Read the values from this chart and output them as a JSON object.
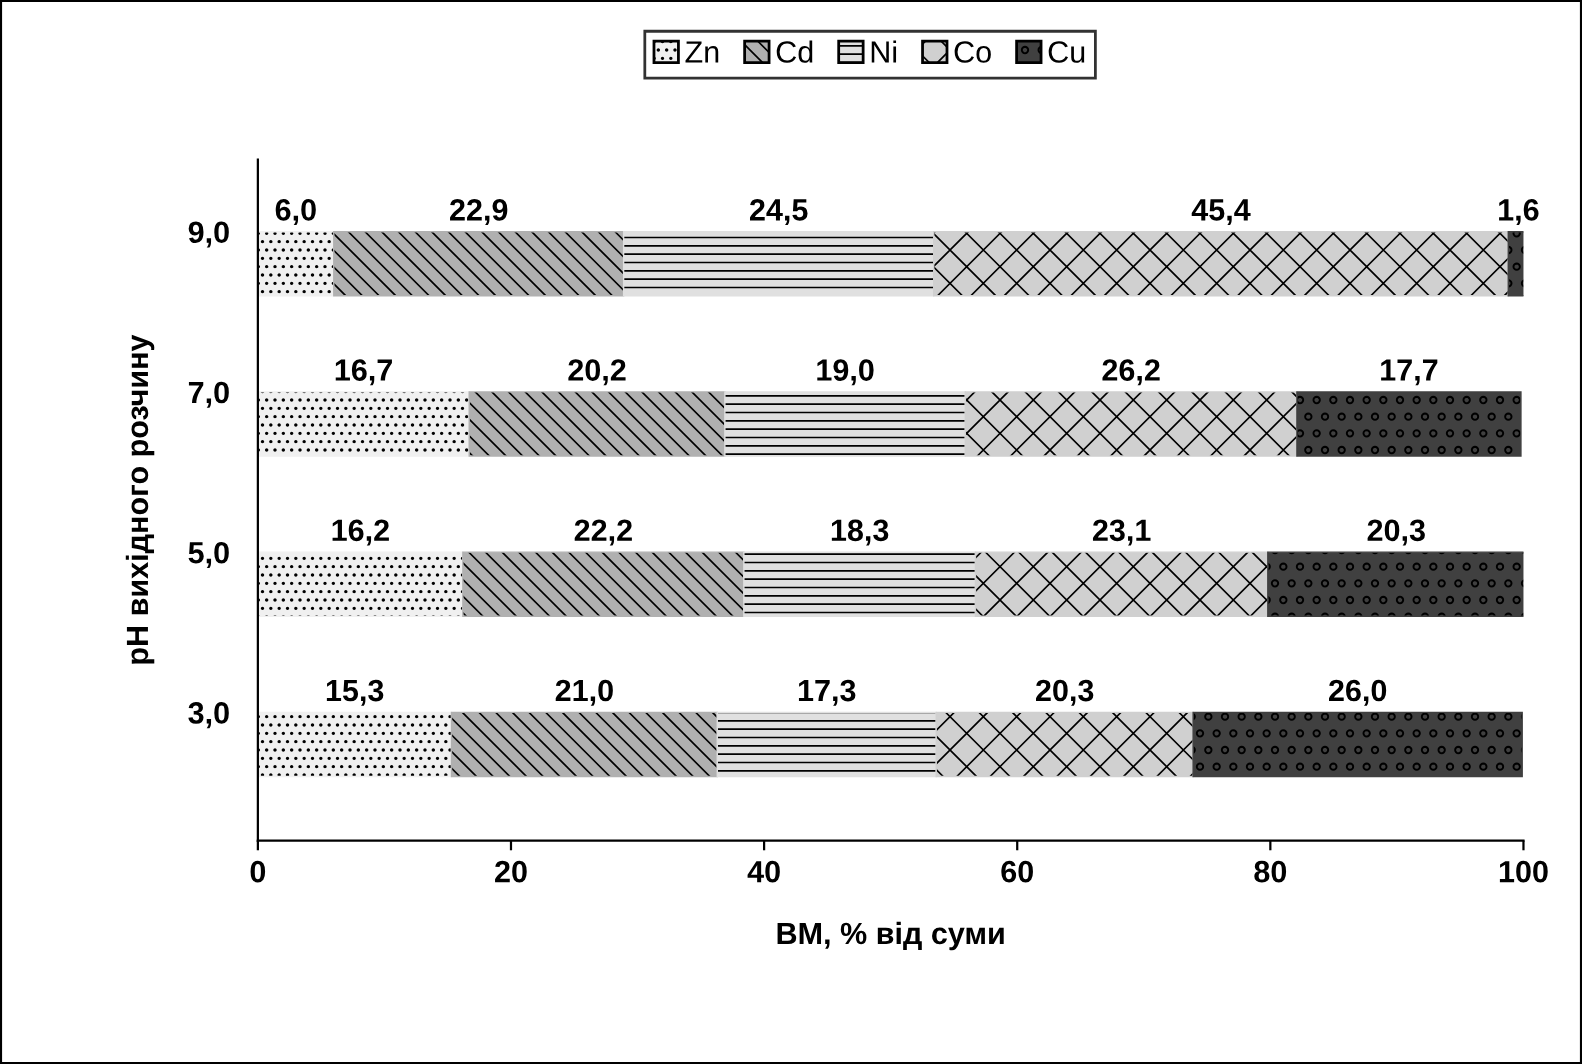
{
  "chart_data": {
    "type": "bar",
    "orientation": "horizontal",
    "stacked": true,
    "xlabel": "ВМ, % від суми",
    "ylabel": "pH вихідного розчину",
    "categories": [
      "9,0",
      "7,0",
      "5,0",
      "3,0"
    ],
    "series": [
      {
        "name": "Zn",
        "color": "#f0f0f0",
        "values": [
          6.0,
          16.7,
          16.2,
          15.3
        ],
        "value_labels": [
          "6,0",
          "16,7",
          "16,2",
          "15,3"
        ]
      },
      {
        "name": "Cd",
        "color": "#b0b0b0",
        "values": [
          22.9,
          20.2,
          22.2,
          21.0
        ],
        "value_labels": [
          "22,9",
          "20,2",
          "22,2",
          "21,0"
        ]
      },
      {
        "name": "Ni",
        "color": "#e0e0e0",
        "values": [
          24.5,
          19.0,
          18.3,
          17.3
        ],
        "value_labels": [
          "24,5",
          "19,0",
          "18,3",
          "17,3"
        ]
      },
      {
        "name": "Co",
        "color": "#d0d0d0",
        "values": [
          45.4,
          26.2,
          23.1,
          20.3
        ],
        "value_labels": [
          "45,4",
          "26,2",
          "23,1",
          "20,3"
        ]
      },
      {
        "name": "Cu",
        "color": "#404040",
        "values": [
          1.6,
          17.7,
          20.3,
          26.0
        ],
        "value_labels": [
          "1,6",
          "17,7",
          "20,3",
          "26,0"
        ]
      }
    ],
    "xlim": [
      0,
      100
    ],
    "xticks": [
      0,
      20,
      40,
      60,
      80,
      100
    ],
    "grid": false,
    "legend": "top"
  }
}
